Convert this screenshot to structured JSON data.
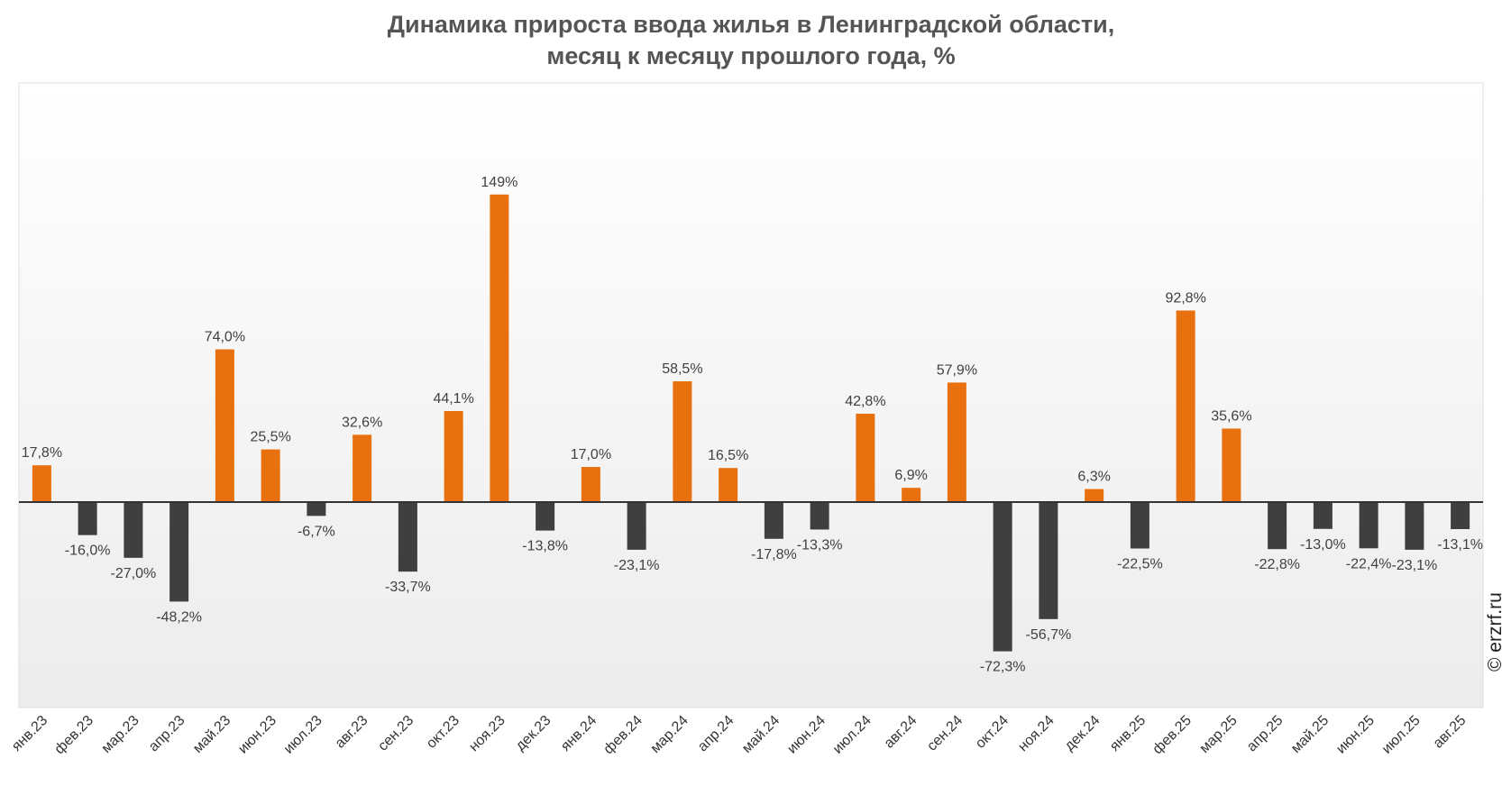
{
  "chart_data": {
    "type": "bar",
    "title_lines": [
      "Динамика прироста ввода жилья в Ленинградской области,",
      "месяц к месяцу прошлого года, %"
    ],
    "xlabel": "",
    "ylabel": "",
    "ylim": [
      -100,
      185
    ],
    "categories": [
      "янв.23",
      "фев.23",
      "мар.23",
      "апр.23",
      "май.23",
      "июн.23",
      "июл.23",
      "авг.23",
      "сен.23",
      "окт.23",
      "ноя.23",
      "дек.23",
      "янв.24",
      "фев.24",
      "мар.24",
      "апр.24",
      "май.24",
      "июн.24",
      "июл.24",
      "авг.24",
      "сен.24",
      "окт.24",
      "ноя.24",
      "дек.24",
      "янв.25",
      "фев.25",
      "мар.25",
      "апр.25",
      "май.25",
      "июн.25",
      "июл.25",
      "авг.25"
    ],
    "values": [
      17.8,
      -16.0,
      -27.0,
      -48.2,
      74.0,
      25.5,
      -6.7,
      32.6,
      -33.7,
      44.1,
      149,
      -13.8,
      17.0,
      -23.1,
      58.5,
      16.5,
      -17.8,
      -13.3,
      42.8,
      6.9,
      57.9,
      -72.3,
      -56.7,
      6.3,
      -22.5,
      92.8,
      35.6,
      -22.8,
      -13.0,
      -22.4,
      -23.1,
      -13.1
    ],
    "labels": [
      "17,8%",
      "-16,0%",
      "-27,0%",
      "-48,2%",
      "74,0%",
      "25,5%",
      "-6,7%",
      "32,6%",
      "-33,7%",
      "44,1%",
      "149%",
      "-13,8%",
      "17,0%",
      "-23,1%",
      "58,5%",
      "16,5%",
      "-17,8%",
      "-13,3%",
      "42,8%",
      "6,9%",
      "57,9%",
      "-72,3%",
      "-56,7%",
      "6,3%",
      "-22,5%",
      "92,8%",
      "35,6%",
      "-22,8%",
      "-13,0%",
      "-22,4%",
      "-23,1%",
      "-13,1%"
    ],
    "colors": {
      "positive": "#E8700E",
      "negative": "#3F3F3F",
      "label": "#404040",
      "axis": "#333333",
      "tick": "#333333"
    },
    "grid": false
  },
  "credit": "© erzrf.ru"
}
